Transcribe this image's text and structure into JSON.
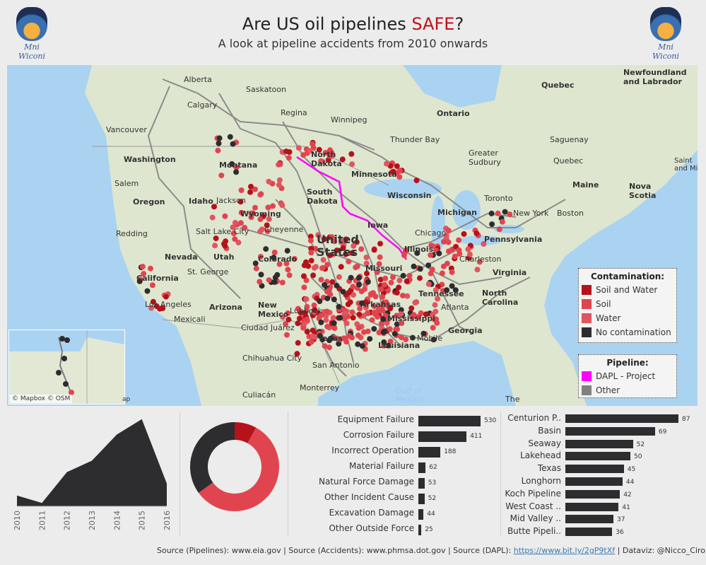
{
  "header": {
    "title_prefix": "Are US oil pipelines ",
    "title_highlight": "SAFE",
    "title_suffix": "?",
    "subtitle": "A look at pipeline accidents from 2010 onwards",
    "logo_caption": "Mni Wiconi"
  },
  "map": {
    "labels": {
      "alberta": "Alberta",
      "saskatoon": "Saskatoon",
      "calgary": "Calgary",
      "regina": "Regina",
      "winnipeg": "Winnipeg",
      "ontario": "Ontario",
      "quebec_prov": "Quebec",
      "newfoundland": "Newfoundland\nand Labrador",
      "vancouver": "Vancouver",
      "washington": "Washington",
      "thunder_bay": "Thunder Bay",
      "saguenay": "Saguenay",
      "greater_sudbury": "Greater\nSudbury",
      "quebec_city": "Quebec",
      "saint": "Saint\nand Mic",
      "north_dakota": "North\nDakota",
      "montana": "Montana",
      "minnesota": "Minnesota",
      "salem": "Salem",
      "maine": "Maine",
      "nova_scotia": "Nova\nScotia",
      "oregon": "Oregon",
      "idaho": "Idaho",
      "jackson": "Jackson",
      "south_dakota": "South\nDakota",
      "wisconsin": "Wisconsin",
      "toronto": "Toronto",
      "michigan": "Michigan",
      "new_york": "New York",
      "boston": "Boston",
      "wyoming": "Wyoming",
      "iowa": "Iowa",
      "redding": "Redding",
      "salt_lake_city": "Salt Lake City",
      "cheyenne": "Cheyenne",
      "chicago": "Chicago",
      "pennsylvania": "Pennsylvania",
      "united_states": "United\nStates",
      "illinois": "Illinois",
      "nevada": "Nevada",
      "utah": "Utah",
      "colorado": "Colorado",
      "missouri": "Missouri",
      "charleston": "Charleston",
      "virginia": "Virginia",
      "california": "California",
      "st_george": "St. George",
      "tennessee": "Tennessee",
      "north_carolina": "North\nCarolina",
      "los_angeles": "Los Angeles",
      "arizona": "Arizona",
      "new_mexico": "New\nMexico",
      "lubbock": "Lubbock",
      "arkansas": "Arkansas",
      "atlanta": "Atlanta",
      "mexicali": "Mexicali",
      "mississippi": "Mississippi",
      "ciudad_juarez": "Ciudad Juárez",
      "georgia": "Georgia",
      "texas": "Texas",
      "louisiana": "Louisiana",
      "mobile": "Mobile",
      "chihuahua_city": "Chihuahua City",
      "san_antonio": "San Antonio",
      "monterrey": "Monterrey",
      "culiacan": "Culiacán",
      "gulf_of_mexico": "Gulf of\nMexico",
      "the": "The"
    },
    "attribution": "© Mapbox © OSM",
    "attribution_tail": "ap"
  },
  "legend_contamination": {
    "title": "Contamination:",
    "items": [
      {
        "label": "Soil and Water",
        "color": "#b5121b"
      },
      {
        "label": "Soil",
        "color": "#e0454f"
      },
      {
        "label": "Water",
        "color": "#e05560"
      },
      {
        "label": "No contamination",
        "color": "#2d2d30"
      }
    ]
  },
  "legend_pipeline": {
    "title": "Pipeline:",
    "items": [
      {
        "label": "DAPL - Project",
        "color": "#ff00ff"
      },
      {
        "label": "Other",
        "color": "#808080"
      }
    ]
  },
  "chart_data": [
    {
      "type": "area",
      "title": "",
      "x": [
        "2010",
        "2011",
        "2012",
        "2013",
        "2014",
        "2015",
        "2016"
      ],
      "values": [
        16,
        5,
        51,
        68,
        107,
        130,
        34
      ],
      "ylim": [
        0,
        135
      ],
      "color": "#2d2d30"
    },
    {
      "type": "pie",
      "donut": true,
      "slices": [
        {
          "label": "Soil and Water",
          "value": 8,
          "color": "#b5121b"
        },
        {
          "label": "Soil",
          "value": 57,
          "color": "#e0454f"
        },
        {
          "label": "No contamination",
          "value": 35,
          "color": "#2d2d30"
        }
      ]
    },
    {
      "type": "bar",
      "orientation": "horizontal",
      "categories": [
        "Equipment Failure",
        "Corrosion Failure",
        "Incorrect Operation",
        "Material Failure",
        "Natural Force Damage",
        "Other Incident Cause",
        "Excavation Damage",
        "Other Outside Force"
      ],
      "values": [
        530,
        411,
        188,
        62,
        53,
        52,
        44,
        25
      ],
      "xlim": [
        0,
        530
      ]
    },
    {
      "type": "bar",
      "orientation": "horizontal",
      "categories": [
        "Centurion P..",
        "Basin",
        "Seaway",
        "Lakehead",
        "Texas",
        "Longhorn",
        "Koch Pipeline",
        "West Coast ..",
        "Mid Valley ..",
        "Butte Pipeli.."
      ],
      "values": [
        87,
        69,
        52,
        50,
        45,
        44,
        42,
        41,
        37,
        36
      ],
      "xlim": [
        0,
        87
      ]
    }
  ],
  "footer": {
    "text": "Source (Pipelines):  www.eia.gov |  Source (Accidents): www.phmsa.dot.gov  |  Source (DAPL):  ",
    "link": "https://www.bit.ly/2gP9tXf",
    "credit": " |  Dataviz: @Nicco_Cirone"
  }
}
